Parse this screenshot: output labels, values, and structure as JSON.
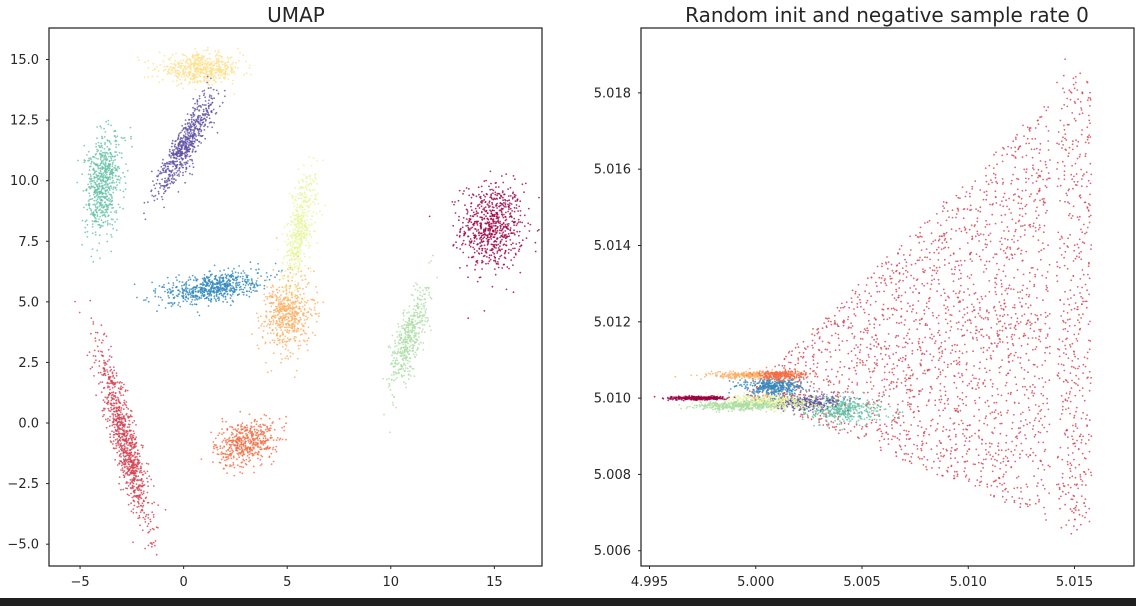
{
  "colors": {
    "c0": "#9e0142",
    "c1": "#d53e4f",
    "c2": "#f46d43",
    "c3": "#fdae61",
    "c4": "#fee08b",
    "c5": "#e6f598",
    "c6": "#abdda4",
    "c7": "#66c2a5",
    "c8": "#3288bd",
    "c9": "#5e4fa2"
  },
  "chart_data": [
    {
      "type": "scatter",
      "title": "UMAP",
      "xlabel": "",
      "ylabel": "",
      "xlim": [
        -6.5,
        17.3
      ],
      "ylim": [
        -5.9,
        16.3
      ],
      "xticks": [
        -5,
        0,
        5,
        10,
        15
      ],
      "xtick_labels": [
        "−5",
        "0",
        "5",
        "10",
        "15"
      ],
      "yticks": [
        -5.0,
        -2.5,
        0.0,
        2.5,
        5.0,
        7.5,
        10.0,
        12.5,
        15.0
      ],
      "ytick_labels": [
        "−5.0",
        "−2.5",
        "0.0",
        "2.5",
        "5.0",
        "7.5",
        "10.0",
        "12.5",
        "15.0"
      ],
      "grid": false,
      "clusters": [
        {
          "color": "c0",
          "center": [
            14.9,
            8.1
          ],
          "axis": [
            1.5,
            1.8
          ],
          "angle": 0,
          "count": 700
        },
        {
          "color": "c1",
          "center": [
            -2.8,
            -0.8
          ],
          "axis": [
            3.9,
            0.6
          ],
          "angle": -73,
          "count": 900
        },
        {
          "color": "c2",
          "center": [
            3.0,
            -0.8
          ],
          "axis": [
            1.5,
            0.9
          ],
          "angle": 15,
          "count": 500
        },
        {
          "color": "c3",
          "center": [
            5.0,
            4.5
          ],
          "axis": [
            1.6,
            1.2
          ],
          "angle": 75,
          "count": 550
        },
        {
          "color": "c4",
          "center": [
            0.8,
            14.6
          ],
          "axis": [
            2.0,
            0.6
          ],
          "angle": 0,
          "count": 550
        },
        {
          "color": "c5",
          "center": [
            5.6,
            8.0
          ],
          "axis": [
            2.3,
            0.6
          ],
          "angle": 80,
          "count": 450
        },
        {
          "color": "c6",
          "center": [
            10.9,
            3.5
          ],
          "axis": [
            2.2,
            0.6
          ],
          "angle": 70,
          "count": 450
        },
        {
          "color": "c7",
          "center": [
            -3.9,
            9.9
          ],
          "axis": [
            2.1,
            0.8
          ],
          "angle": 82,
          "count": 650
        },
        {
          "color": "c8",
          "center": [
            1.4,
            5.6
          ],
          "axis": [
            2.3,
            0.6
          ],
          "angle": 8,
          "count": 650
        },
        {
          "color": "c9",
          "center": [
            0.1,
            11.5
          ],
          "axis": [
            2.5,
            0.6
          ],
          "angle": 57,
          "count": 650
        }
      ]
    },
    {
      "type": "scatter",
      "title": "Random init and negative sample rate 0",
      "xlabel": "",
      "ylabel": "",
      "xlim": [
        4.9946,
        5.0178
      ],
      "ylim": [
        5.0056,
        5.0197
      ],
      "xticks": [
        4.995,
        5.0,
        5.005,
        5.01,
        5.015
      ],
      "xtick_labels": [
        "4.995",
        "5.000",
        "5.005",
        "5.010",
        "5.015"
      ],
      "yticks": [
        5.006,
        5.008,
        5.01,
        5.012,
        5.014,
        5.016,
        5.018
      ],
      "ytick_labels": [
        "5.006",
        "5.008",
        "5.010",
        "5.012",
        "5.014",
        "5.016",
        "5.018"
      ],
      "grid": false,
      "clusters": [
        {
          "color": "c1",
          "shape": "triangle",
          "tip": [
            4.9995,
            5.0101
          ],
          "right_x": 5.0158,
          "top_y": 5.0189,
          "bottom_y": 5.0063,
          "count": 2600
        },
        {
          "color": "c7",
          "center": [
            5.0042,
            5.0097
          ],
          "axis": [
            0.0018,
            0.00035
          ],
          "angle": 0,
          "count": 420
        },
        {
          "color": "c9",
          "center": [
            5.0022,
            5.0099
          ],
          "axis": [
            0.0018,
            0.0002
          ],
          "angle": 0,
          "count": 320
        },
        {
          "color": "c5",
          "center": [
            5.0006,
            5.0099
          ],
          "axis": [
            0.0024,
            0.0002
          ],
          "angle": 0,
          "count": 420
        },
        {
          "color": "c6",
          "center": [
            4.9992,
            5.0098
          ],
          "axis": [
            0.0022,
            0.00012
          ],
          "angle": 0,
          "count": 380
        },
        {
          "color": "c8",
          "center": [
            5.0008,
            5.0103
          ],
          "axis": [
            0.0014,
            0.00022
          ],
          "angle": 0,
          "count": 380
        },
        {
          "color": "c3",
          "center": [
            4.9995,
            5.0106
          ],
          "axis": [
            0.0018,
            0.0001
          ],
          "angle": 0,
          "count": 260
        },
        {
          "color": "c2",
          "center": [
            5.0012,
            5.0106
          ],
          "axis": [
            0.0011,
            0.00012
          ],
          "angle": 0,
          "count": 240
        },
        {
          "color": "c0",
          "center": [
            4.9973,
            5.01
          ],
          "axis": [
            0.0012,
            5e-05
          ],
          "angle": 0,
          "count": 340
        }
      ]
    }
  ]
}
